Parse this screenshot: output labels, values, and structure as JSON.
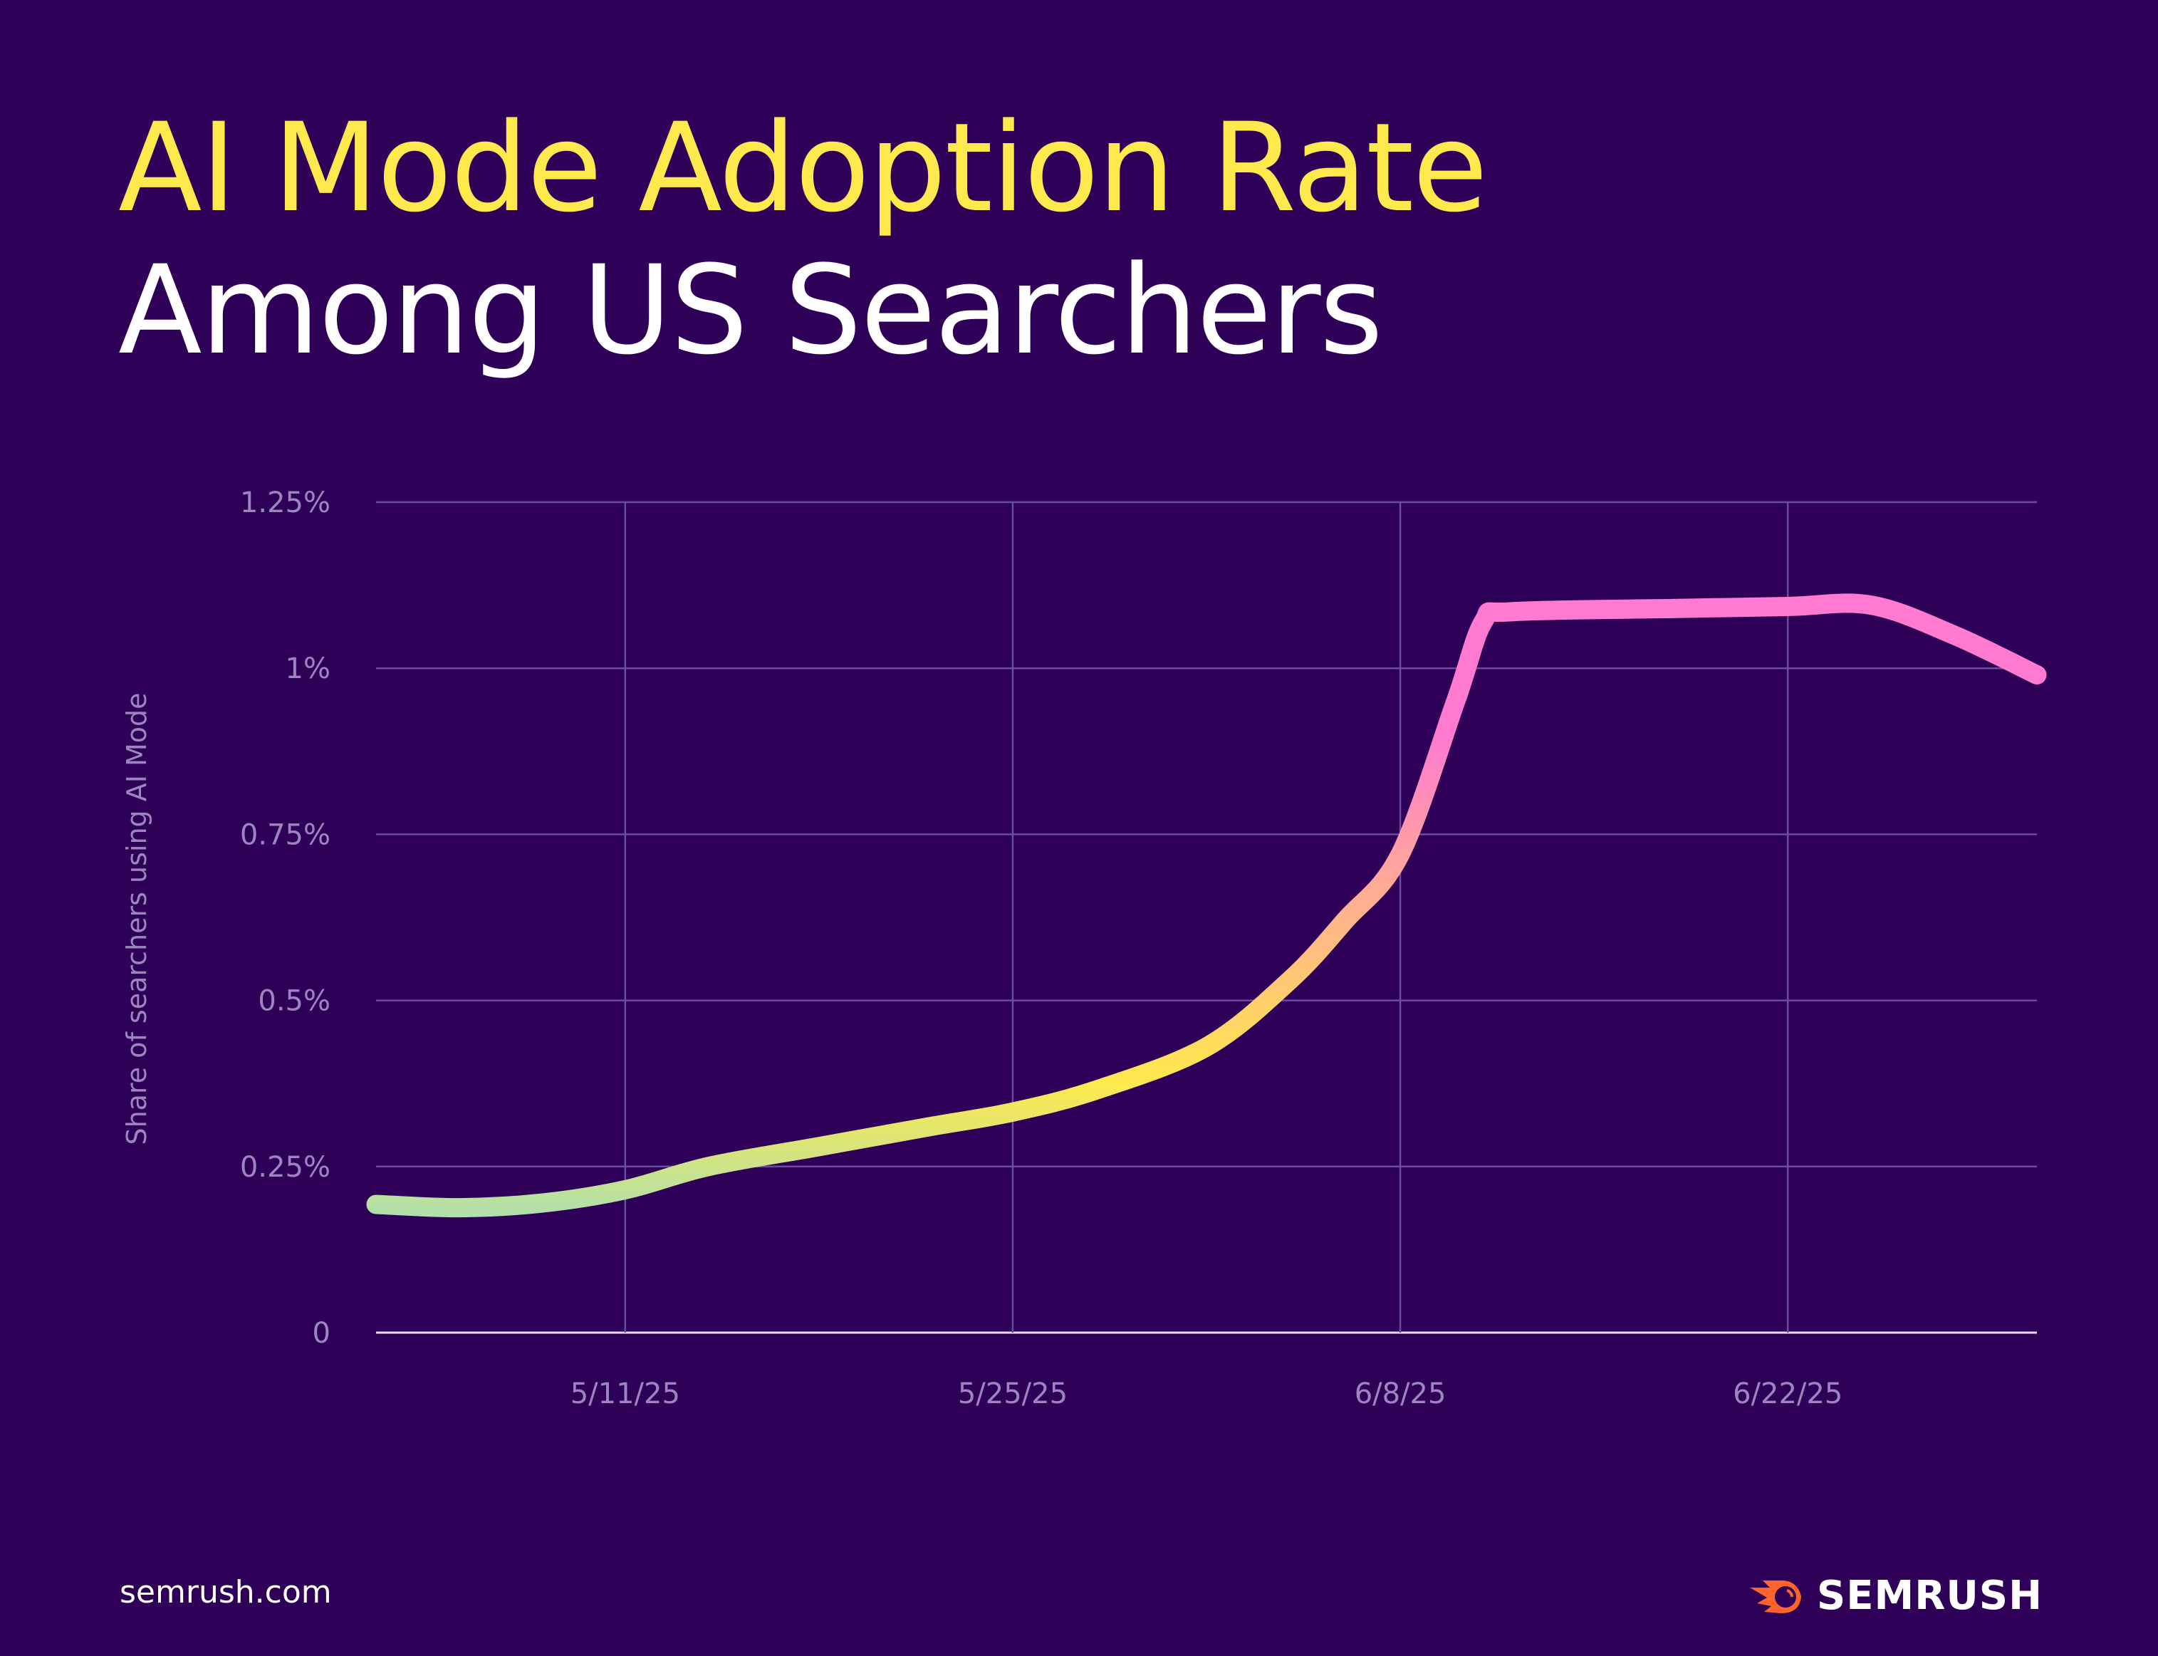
{
  "header": {
    "title_line1": "AI Mode Adoption Rate",
    "title_line2": "Among US Searchers"
  },
  "footer": {
    "source": "semrush.com",
    "brand": "SEMRUSH",
    "brand_color": "#ff642d"
  },
  "colors": {
    "background": "#2e0058",
    "title": "#ffe94d",
    "line_gradient": [
      "#6ad8ff",
      "#ffe94d",
      "#ff7ad0"
    ]
  },
  "chart_data": {
    "type": "line",
    "title": "AI Mode Adoption Rate Among US Searchers",
    "xlabel": "",
    "ylabel": "Share of searchers using AI Mode",
    "xlim": [
      "2025-05-02",
      "2025-07-01"
    ],
    "ylim": [
      0,
      1.25
    ],
    "grid": true,
    "x_ticks": [
      {
        "date": "2025-05-11",
        "label": "5/11/25"
      },
      {
        "date": "2025-05-25",
        "label": "5/25/25"
      },
      {
        "date": "2025-06-08",
        "label": "6/8/25"
      },
      {
        "date": "2025-06-22",
        "label": "6/22/25"
      }
    ],
    "y_ticks": [
      {
        "value": 0,
        "label": "0"
      },
      {
        "value": 0.25,
        "label": "0.25%"
      },
      {
        "value": 0.5,
        "label": "0.5%"
      },
      {
        "value": 0.75,
        "label": "0.75%"
      },
      {
        "value": 1,
        "label": "1%"
      },
      {
        "value": 1.25,
        "label": "1.25%"
      }
    ],
    "series": [
      {
        "x": [
          "2025-05-02",
          "2025-05-05",
          "2025-05-08",
          "2025-05-11",
          "2025-05-14",
          "2025-05-18",
          "2025-05-22",
          "2025-05-25",
          "2025-05-28",
          "2025-06-01",
          "2025-06-04",
          "2025-06-06",
          "2025-06-08",
          "2025-06-10",
          "2025-06-11",
          "2025-06-12",
          "2025-06-18",
          "2025-06-22",
          "2025-06-25",
          "2025-06-28",
          "2025-07-01"
        ],
        "y": [
          0.193,
          0.188,
          0.195,
          0.215,
          0.25,
          0.28,
          0.31,
          0.332,
          0.365,
          0.43,
          0.53,
          0.62,
          0.72,
          0.95,
          1.07,
          1.085,
          1.09,
          1.093,
          1.095,
          1.05,
          0.99
        ]
      }
    ]
  }
}
